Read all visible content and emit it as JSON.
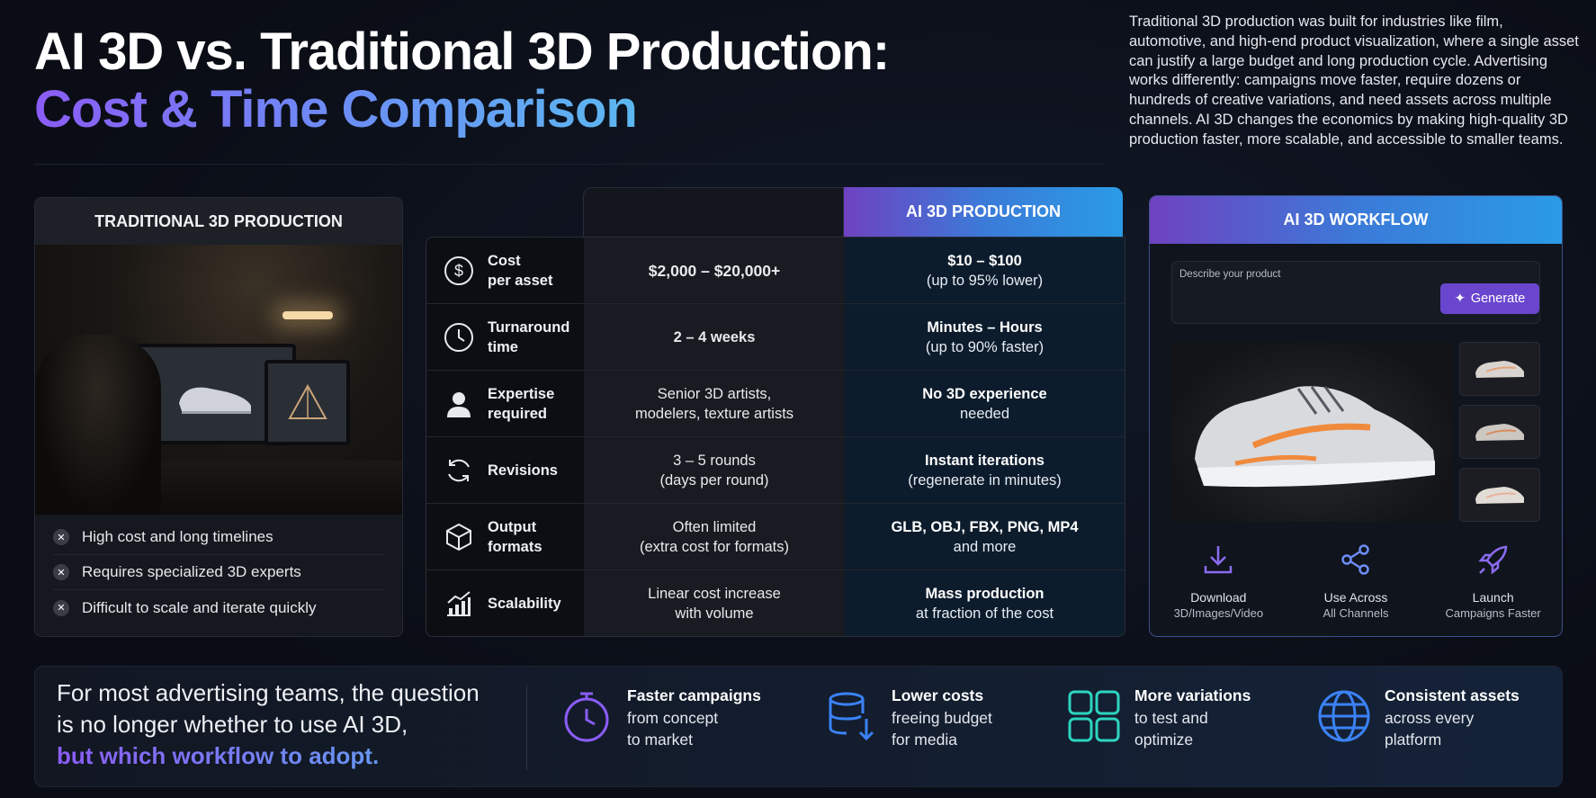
{
  "header": {
    "title_line1": "AI 3D vs. Traditional 3D Production:",
    "title_line2": "Cost & Time Comparison",
    "intro": "Traditional 3D production was built for industries like film, automotive, and high-end product visualization, where a single asset can justify a large budget and long production cycle. Advertising works differently: campaigns move faster, require dozens or hundreds of creative variations, and need assets across multiple channels. AI 3D changes the economics by making high-quality 3D production faster, more scalable, and accessible to smaller teams."
  },
  "traditional_card": {
    "title": "TRADITIONAL 3D PRODUCTION",
    "cons": [
      "High cost and long timelines",
      "Requires specialized 3D experts",
      "Difficult to scale and iterate quickly"
    ]
  },
  "comparison": {
    "ai_header": "AI 3D PRODUCTION",
    "rows": [
      {
        "icon": "dollar-icon",
        "label": "Cost\nper asset",
        "traditional": "$2,000 – $20,000+",
        "ai_strong": "$10 – $100",
        "ai_sub": "(up to 95% lower)"
      },
      {
        "icon": "clock-icon",
        "label": "Turnaround\ntime",
        "traditional": "2 – 4 weeks",
        "ai_strong": "Minutes – Hours",
        "ai_sub": "(up to 90% faster)"
      },
      {
        "icon": "person-icon",
        "label": "Expertise\nrequired",
        "traditional": "Senior 3D artists,\nmodelers, texture artists",
        "ai_strong": "No 3D experience",
        "ai_sub": "needed"
      },
      {
        "icon": "refresh-icon",
        "label": "Revisions",
        "traditional": "3 – 5 rounds\n(days per round)",
        "ai_strong": "Instant iterations",
        "ai_sub": "(regenerate in minutes)"
      },
      {
        "icon": "box-icon",
        "label": "Output\nformats",
        "traditional": "Often limited\n(extra cost for formats)",
        "ai_strong": "GLB, OBJ, FBX, PNG, MP4",
        "ai_sub": "and more"
      },
      {
        "icon": "chart-growth-icon",
        "label": "Scalability",
        "traditional": "Linear cost increase\nwith volume",
        "ai_strong": "Mass production",
        "ai_sub": "at fraction of the cost"
      }
    ]
  },
  "workflow": {
    "title": "AI 3D WORKFLOW",
    "prompt_placeholder": "Describe your product",
    "generate_label": "Generate",
    "actions": [
      {
        "icon": "download-icon",
        "line1": "Download",
        "line2": "3D/Images/Video"
      },
      {
        "icon": "share-icon",
        "line1": "Use Across",
        "line2": "All Channels"
      },
      {
        "icon": "rocket-icon",
        "line1": "Launch",
        "line2": "Campaigns Faster"
      }
    ]
  },
  "banner": {
    "question_line1": "For most advertising teams, the question",
    "question_line2": "is no longer whether to use AI 3D,",
    "question_highlight": "but which workflow to adopt.",
    "benefits": [
      {
        "icon": "stopwatch-icon",
        "title": "Faster campaigns",
        "line1": "from concept",
        "line2": "to market"
      },
      {
        "icon": "database-down-icon",
        "title": "Lower costs",
        "line1": "freeing budget",
        "line2": "for media"
      },
      {
        "icon": "grid-icon",
        "title": "More variations",
        "line1": "to test and",
        "line2": "optimize"
      },
      {
        "icon": "globe-icon",
        "title": "Consistent assets",
        "line1": "across every",
        "line2": "platform"
      }
    ]
  },
  "colors": {
    "accent_purple": "#8b5cf6",
    "accent_blue": "#3b82f6",
    "accent_teal": "#2dd4bf"
  }
}
